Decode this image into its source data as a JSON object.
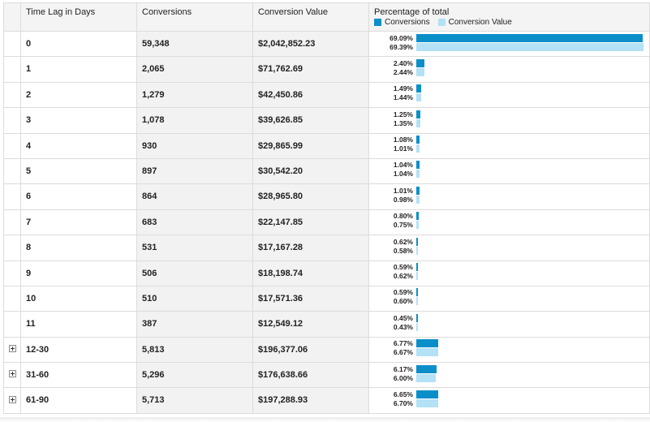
{
  "header": {
    "col_time_lag": "Time Lag in Days",
    "col_conversions": "Conversions",
    "col_value": "Conversion Value",
    "col_percentage": "Percentage of total",
    "legend_conversions": "Conversions",
    "legend_value": "Conversion Value"
  },
  "colors": {
    "conversions_bar": "#0a8fc9",
    "value_bar": "#b3e1f6"
  },
  "rows": [
    {
      "lag": "0",
      "conversions": "59,348",
      "value": "$2,042,852.23",
      "pct_conv": "69.09%",
      "pct_val": "69.39%",
      "expandable": false
    },
    {
      "lag": "1",
      "conversions": "2,065",
      "value": "$71,762.69",
      "pct_conv": "2.40%",
      "pct_val": "2.44%",
      "expandable": false
    },
    {
      "lag": "2",
      "conversions": "1,279",
      "value": "$42,450.86",
      "pct_conv": "1.49%",
      "pct_val": "1.44%",
      "expandable": false
    },
    {
      "lag": "3",
      "conversions": "1,078",
      "value": "$39,626.85",
      "pct_conv": "1.25%",
      "pct_val": "1.35%",
      "expandable": false
    },
    {
      "lag": "4",
      "conversions": "930",
      "value": "$29,865.99",
      "pct_conv": "1.08%",
      "pct_val": "1.01%",
      "expandable": false
    },
    {
      "lag": "5",
      "conversions": "897",
      "value": "$30,542.20",
      "pct_conv": "1.04%",
      "pct_val": "1.04%",
      "expandable": false
    },
    {
      "lag": "6",
      "conversions": "864",
      "value": "$28,965.80",
      "pct_conv": "1.01%",
      "pct_val": "0.98%",
      "expandable": false
    },
    {
      "lag": "7",
      "conversions": "683",
      "value": "$22,147.85",
      "pct_conv": "0.80%",
      "pct_val": "0.75%",
      "expandable": false
    },
    {
      "lag": "8",
      "conversions": "531",
      "value": "$17,167.28",
      "pct_conv": "0.62%",
      "pct_val": "0.58%",
      "expandable": false
    },
    {
      "lag": "9",
      "conversions": "506",
      "value": "$18,198.74",
      "pct_conv": "0.59%",
      "pct_val": "0.62%",
      "expandable": false
    },
    {
      "lag": "10",
      "conversions": "510",
      "value": "$17,571.36",
      "pct_conv": "0.59%",
      "pct_val": "0.60%",
      "expandable": false
    },
    {
      "lag": "11",
      "conversions": "387",
      "value": "$12,549.12",
      "pct_conv": "0.45%",
      "pct_val": "0.43%",
      "expandable": false
    },
    {
      "lag": "12-30",
      "conversions": "5,813",
      "value": "$196,377.06",
      "pct_conv": "6.77%",
      "pct_val": "6.67%",
      "expandable": true
    },
    {
      "lag": "31-60",
      "conversions": "5,296",
      "value": "$176,638.66",
      "pct_conv": "6.17%",
      "pct_val": "6.00%",
      "expandable": true
    },
    {
      "lag": "61-90",
      "conversions": "5,713",
      "value": "$197,288.93",
      "pct_conv": "6.65%",
      "pct_val": "6.70%",
      "expandable": true
    }
  ]
}
